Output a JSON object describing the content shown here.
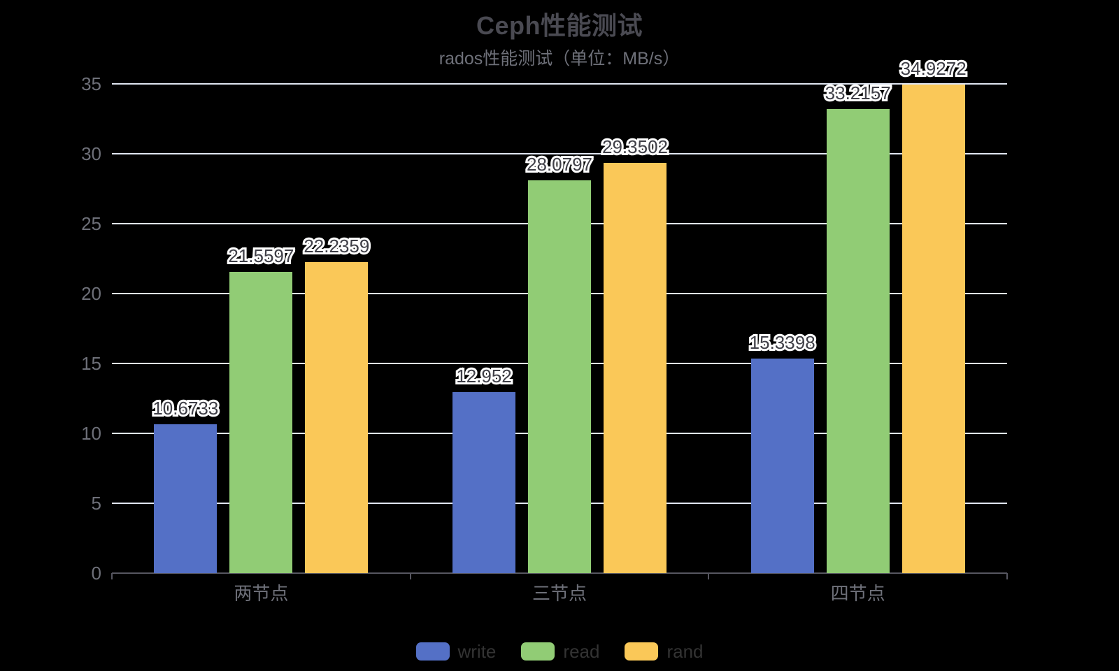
{
  "chart_data": {
    "type": "bar",
    "title": "Ceph性能测试",
    "subtitle": "rados性能测试（单位：MB/s）",
    "categories": [
      "两节点",
      "三节点",
      "四节点"
    ],
    "series": [
      {
        "name": "write",
        "color": "#5470C6",
        "values": [
          10.6733,
          12.952,
          15.3398
        ]
      },
      {
        "name": "read",
        "color": "#91CC75",
        "values": [
          21.5597,
          28.0797,
          33.2157
        ]
      },
      {
        "name": "rand",
        "color": "#FAC858",
        "values": [
          22.2359,
          29.3502,
          34.9272
        ]
      }
    ],
    "ylim": [
      0,
      35
    ],
    "y_ticks": [
      0,
      5,
      10,
      15,
      20,
      25,
      30,
      35
    ],
    "xlabel": "",
    "ylabel": "",
    "grid": true,
    "legend_position": "bottom-center",
    "style": {
      "background": "#000000",
      "title_color": "#4a4a52",
      "subtitle_color": "#6E7079",
      "axis_label_color": "#6E7079",
      "axis_line_color": "#565660",
      "gridline_color": "#E0E6F1",
      "bar_value_label_color": "#3f3f47",
      "bar_value_label_outline": "#ffffff",
      "legend_text_color": "#333333"
    }
  }
}
